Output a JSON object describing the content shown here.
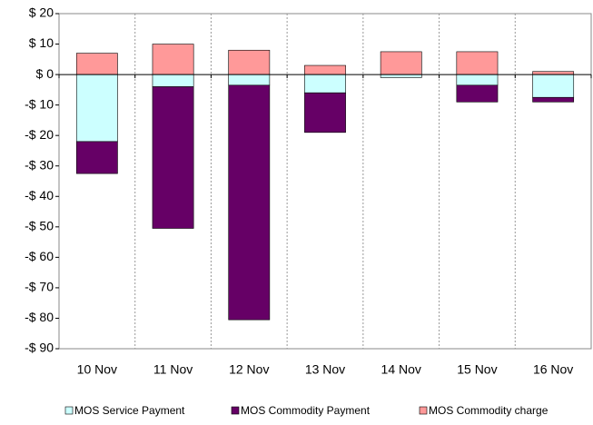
{
  "chart_data": {
    "type": "stacked_bar",
    "categories": [
      "10 Nov",
      "11 Nov",
      "12 Nov",
      "13 Nov",
      "14 Nov",
      "15 Nov",
      "16 Nov"
    ],
    "series": [
      {
        "name": "MOS Service Payment",
        "color": "#ccffff",
        "values": [
          -22,
          -4,
          -3.5,
          -6,
          -1,
          -3.5,
          -7.5
        ]
      },
      {
        "name": "MOS Commodity Payment",
        "color": "#660066",
        "values": [
          -10.5,
          -46.5,
          -77,
          -13,
          0,
          -5.5,
          -1.5
        ]
      },
      {
        "name": "MOS Commodity charge",
        "color": "#ff9999",
        "values": [
          7,
          10,
          8,
          3,
          7.5,
          7.5,
          1
        ]
      }
    ],
    "ylim": [
      -90,
      20
    ],
    "yticks": [
      {
        "value": 20,
        "label": "$ 20"
      },
      {
        "value": 10,
        "label": "$ 10"
      },
      {
        "value": 0,
        "label": "$ 0"
      },
      {
        "value": -10,
        "label": "-$ 10"
      },
      {
        "value": -20,
        "label": "-$ 20"
      },
      {
        "value": -30,
        "label": "-$ 30"
      },
      {
        "value": -40,
        "label": "-$ 40"
      },
      {
        "value": -50,
        "label": "-$ 50"
      },
      {
        "value": -60,
        "label": "-$ 60"
      },
      {
        "value": -70,
        "label": "-$ 70"
      },
      {
        "value": -80,
        "label": "-$ 80"
      },
      {
        "value": -90,
        "label": "-$ 90"
      }
    ],
    "legend": "bottom"
  }
}
